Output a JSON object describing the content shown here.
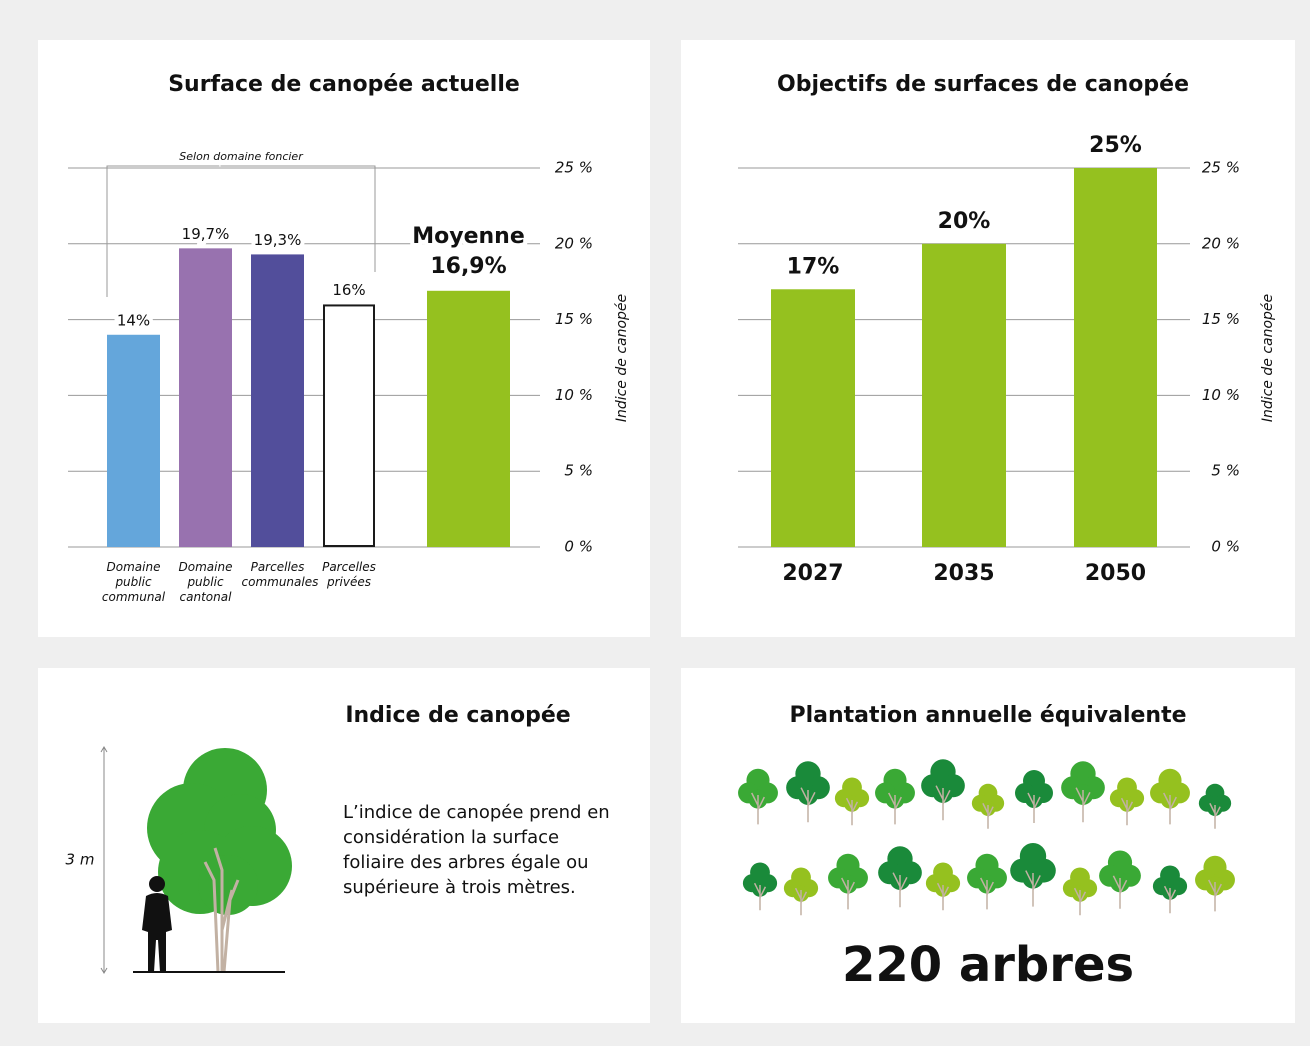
{
  "chart_data": [
    {
      "type": "bar",
      "title": "Surface de canopée actuelle",
      "categories": [
        "Domaine public communal",
        "Domaine public cantonal",
        "Parcelles communales",
        "Parcelles privées",
        null
      ],
      "values": [
        14,
        19.7,
        19.3,
        16,
        16.9
      ],
      "value_labels": [
        "14%",
        "19,7%",
        "19,3%",
        "16%",
        "16,9%"
      ],
      "colors": [
        "#64a6db",
        "#9872af",
        "#524e9b",
        "#ffffff",
        "#95c11f"
      ],
      "edgecolors": [
        "#64a6db",
        "#9872af",
        "#524e9b",
        "#1a1a1a",
        "#95c11f"
      ],
      "average_label": "Moyenne",
      "annotation": "Selon domaine foncier",
      "ylabel": "Indice de canopée",
      "ylim": [
        0,
        25
      ],
      "yticks": [
        {
          "value": 0,
          "label": "0 %"
        },
        {
          "value": 5,
          "label": "5 %"
        },
        {
          "value": 10,
          "label": "10 %"
        },
        {
          "value": 15,
          "label": "15 %"
        },
        {
          "value": 20,
          "label": "20 %"
        },
        {
          "value": 25,
          "label": "25 %"
        }
      ],
      "grid": true
    },
    {
      "type": "bar",
      "title": "Objectifs de surfaces de canopée",
      "categories": [
        "2027",
        "2035",
        "2050"
      ],
      "values": [
        17,
        20,
        25
      ],
      "value_labels": [
        "17%",
        "20%",
        "25%"
      ],
      "color": "#95c11f",
      "ylabel": "Indice de canopée",
      "ylim": [
        0,
        25
      ],
      "yticks": [
        {
          "value": 0,
          "label": "0 %"
        },
        {
          "value": 5,
          "label": "5 %"
        },
        {
          "value": 10,
          "label": "10 %"
        },
        {
          "value": 15,
          "label": "15 %"
        },
        {
          "value": 20,
          "label": "20 %"
        },
        {
          "value": 25,
          "label": "25 %"
        }
      ],
      "grid": true
    }
  ],
  "indice": {
    "title": "Indice de canopée",
    "height_label": "3 m",
    "text": "L’indice de canopée prend en considération la surface foliaire des arbres égale ou supérieure à trois mètres."
  },
  "plantation": {
    "title": "Plantation annuelle équivalente",
    "total": "220 arbres"
  }
}
